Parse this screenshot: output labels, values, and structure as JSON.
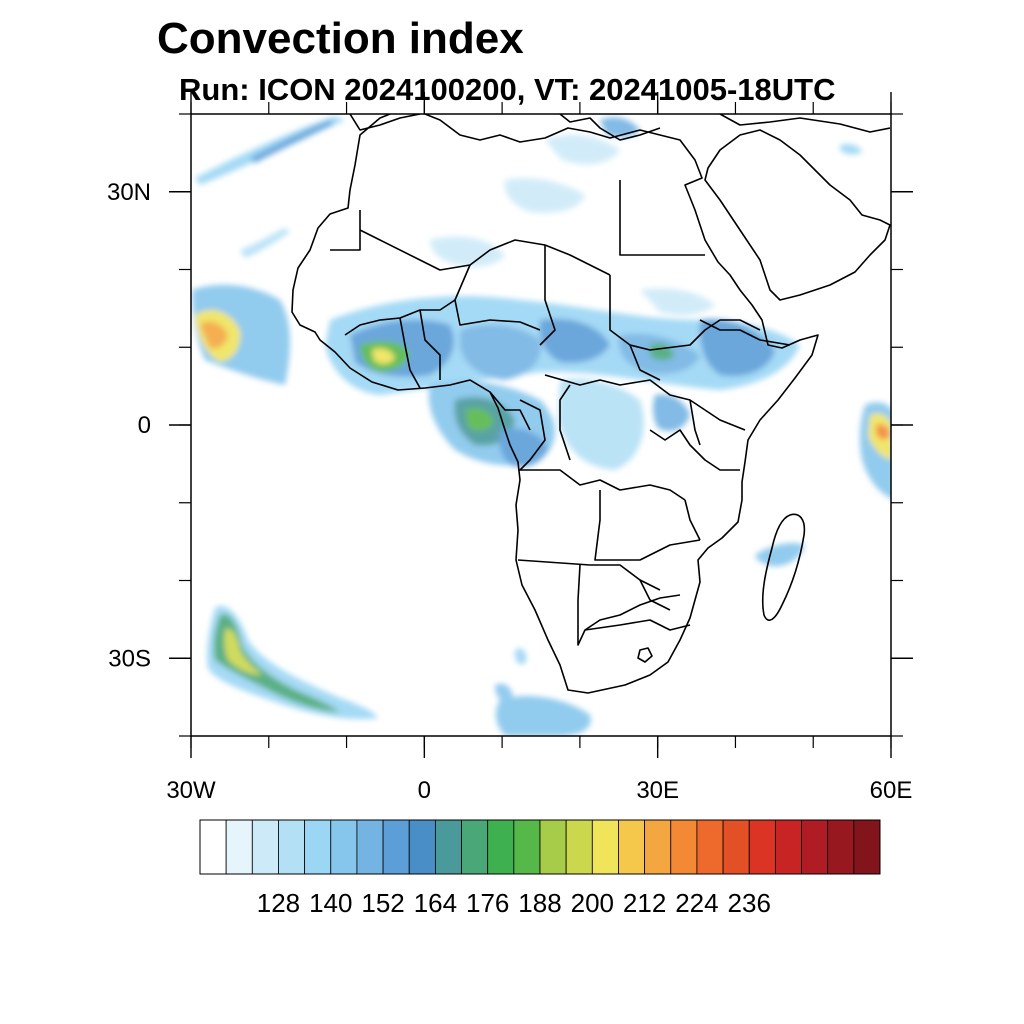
{
  "title": "Convection index",
  "subtitle": "Run: ICON 2024100200,  VT: 20241005-18UTC",
  "map": {
    "region": "Africa",
    "lon_range": [
      -30,
      60
    ],
    "lat_range": [
      -40,
      40
    ],
    "x_ticks": [
      {
        "lon": -30,
        "label": "30W"
      },
      {
        "lon": 0,
        "label": "0"
      },
      {
        "lon": 30,
        "label": "30E"
      },
      {
        "lon": 60,
        "label": "60E"
      }
    ],
    "y_ticks": [
      {
        "lat": 30,
        "label": "30N"
      },
      {
        "lat": 0,
        "label": "0"
      },
      {
        "lat": -30,
        "label": "30S"
      }
    ]
  },
  "colorbar": {
    "colors": [
      "#ffffff",
      "#e6f4fb",
      "#cdeaf8",
      "#b4e0f6",
      "#9bd6f4",
      "#86c6ec",
      "#74b4e3",
      "#5b9ed8",
      "#4a8ec8",
      "#4a9a9c",
      "#4aa878",
      "#3fb050",
      "#56b848",
      "#a6cc4a",
      "#cbd84e",
      "#efe45a",
      "#f5c84c",
      "#f4a640",
      "#f38835",
      "#ee6a2c",
      "#e45026",
      "#dc3424",
      "#c82424",
      "#b01c24",
      "#981820",
      "#82141c"
    ],
    "labels": [
      "128",
      "140",
      "152",
      "164",
      "176",
      "188",
      "200",
      "212",
      "224",
      "236"
    ],
    "label_values": [
      128,
      140,
      152,
      164,
      176,
      188,
      200,
      212,
      224,
      236
    ]
  }
}
